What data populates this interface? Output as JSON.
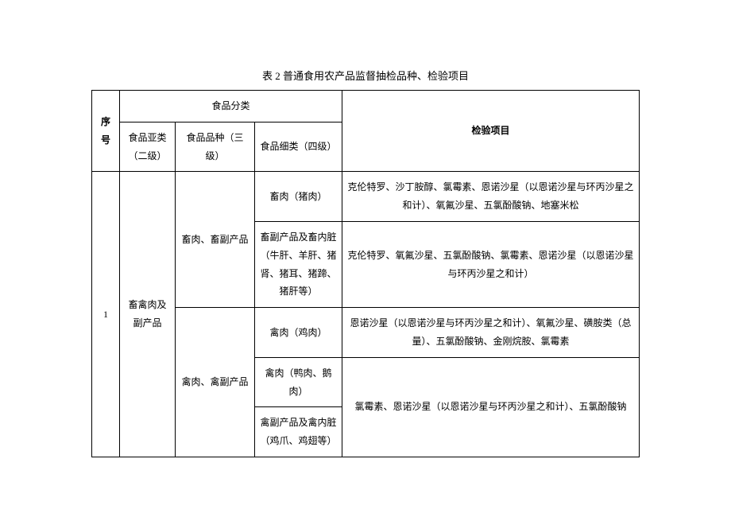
{
  "title": "表 2 普通食用农产品监督抽检品种、检验项目",
  "headers": {
    "index": "序号",
    "category": "食品分类",
    "sub_category": "食品亚类（二级）",
    "food_type": "食品品种（三级）",
    "food_detail": "食品细类（四级）",
    "inspection": "检验项目"
  },
  "rows": [
    {
      "index": "1",
      "sub_category": "畜禽肉及副产品",
      "types": [
        {
          "food_type": "畜肉、畜副产品",
          "details": [
            {
              "food_detail": "畜肉（猪肉）",
              "inspection": "克伦特罗、沙丁胺醇、氯霉素、恩诺沙星（以恩诺沙星与环丙沙星之和计）、氧氟沙星、五氯酚酸钠、地塞米松"
            },
            {
              "food_detail": "畜副产品及畜内脏（牛肝、羊肝、猪肾、猪耳、猪蹄、猪肝等）",
              "inspection": "克伦特罗、氧氟沙星、五氯酚酸钠、氯霉素、恩诺沙星（以恩诺沙星与环丙沙星之和计）"
            }
          ]
        },
        {
          "food_type": "禽肉、禽副产品",
          "details": [
            {
              "food_detail": "禽肉（鸡肉）",
              "inspection": "恩诺沙星（以恩诺沙星与环丙沙星之和计）、氧氟沙星、磺胺类（总量）、五氯酚酸钠、金刚烷胺、氯霉素"
            },
            {
              "food_detail": "禽肉（鸭肉、鹅肉）",
              "inspection_merged": true
            },
            {
              "food_detail": "禽副产品及禽内脏（鸡爪、鸡翅等）",
              "inspection": "氯霉素、恩诺沙星（以恩诺沙星与环丙沙星之和计）、五氯酚酸钠"
            }
          ]
        }
      ]
    }
  ]
}
